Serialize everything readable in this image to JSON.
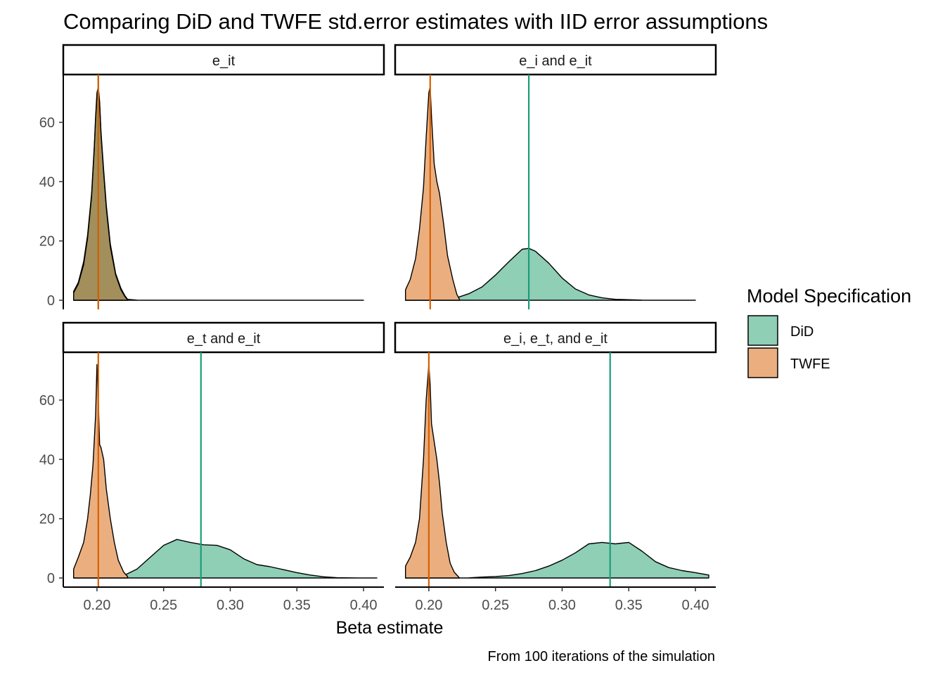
{
  "chart_data": {
    "type": "area",
    "title": "Comparing DiD and TWFE std.error estimates with IID error assumptions",
    "xlabel": "Beta estimate",
    "ylabel": "",
    "caption": "From 100 iterations of the simulation",
    "xlim": [
      0.18,
      0.41
    ],
    "ylim": [
      0,
      73
    ],
    "x_ticks": [
      0.2,
      0.25,
      0.3,
      0.35,
      0.4
    ],
    "x_tick_labels": [
      "0.20",
      "0.25",
      "0.30",
      "0.35",
      "0.40"
    ],
    "y_ticks": [
      0,
      20,
      40,
      60
    ],
    "y_tick_labels": [
      "0",
      "20",
      "40",
      "60"
    ],
    "grid": false,
    "legend": {
      "title": "Model Specification",
      "placement": "right",
      "entries": [
        {
          "label": "DiD",
          "color": "#1b9e77"
        },
        {
          "label": "TWFE",
          "color": "#d95f02"
        }
      ]
    },
    "fill_colors": {
      "DiD": "#8ecfb6",
      "TWFE": "#ebaf7f"
    },
    "line_colors": {
      "DiD": "#1b9e77",
      "TWFE": "#d95f02"
    },
    "panels": [
      {
        "strip": "e_it",
        "x_range": [
          0.1825,
          0.4
        ],
        "series": [
          {
            "name": "DiD",
            "mean": 0.201,
            "x": [
              0.1825,
              0.186,
              0.19,
              0.193,
              0.196,
              0.198,
              0.199,
              0.2,
              0.201,
              0.202,
              0.203,
              0.205,
              0.207,
              0.21,
              0.214,
              0.218,
              0.221,
              0.223,
              0.23,
              0.26,
              0.3,
              0.35,
              0.4
            ],
            "y": [
              3,
              6,
              13,
              22,
              36,
              52,
              62,
              70,
              72,
              67,
              57,
              44,
              32,
              19,
              9,
              4,
              1.5,
              0.3,
              0.05,
              0,
              0,
              0,
              0
            ]
          },
          {
            "name": "TWFE",
            "mean": 0.201,
            "x": [
              0.1825,
              0.186,
              0.19,
              0.193,
              0.196,
              0.198,
              0.199,
              0.2,
              0.201,
              0.202,
              0.203,
              0.205,
              0.207,
              0.21,
              0.214,
              0.218,
              0.221,
              0.223
            ],
            "y": [
              2.5,
              5.5,
              12,
              21,
              35,
              51,
              61,
              69,
              71,
              66,
              56,
              43,
              31,
              18,
              8.5,
              3.5,
              1.2,
              0.1
            ]
          }
        ]
      },
      {
        "strip": "e_i and e_it",
        "x_range": [
          0.1825,
          0.4
        ],
        "series": [
          {
            "name": "DiD",
            "mean": 0.275,
            "x": [
              0.1825,
              0.2,
              0.215,
              0.222,
              0.23,
              0.24,
              0.25,
              0.26,
              0.27,
              0.275,
              0.28,
              0.29,
              0.3,
              0.31,
              0.32,
              0.33,
              0.34,
              0.36,
              0.38,
              0.4
            ],
            "y": [
              0,
              0,
              0.3,
              1,
              2.2,
              4.5,
              8.5,
              13,
              17.2,
              17.5,
              16.5,
              12.5,
              7.5,
              3.8,
              1.8,
              0.8,
              0.3,
              0.05,
              0,
              0
            ]
          },
          {
            "name": "TWFE",
            "mean": 0.201,
            "x": [
              0.1825,
              0.186,
              0.19,
              0.193,
              0.196,
              0.198,
              0.2,
              0.201,
              0.202,
              0.204,
              0.206,
              0.208,
              0.211,
              0.214,
              0.218,
              0.221,
              0.223
            ],
            "y": [
              3.5,
              7,
              14,
              24,
              38,
              55,
              70,
              72,
              62,
              46,
              40,
              36,
              26,
              15,
              7,
              2,
              0.3
            ]
          }
        ]
      },
      {
        "strip": "e_t and e_it",
        "x_range": [
          0.1825,
          0.41
        ],
        "series": [
          {
            "name": "DiD",
            "mean": 0.278,
            "x": [
              0.1825,
              0.2,
              0.21,
              0.215,
              0.22,
              0.23,
              0.24,
              0.25,
              0.26,
              0.27,
              0.28,
              0.29,
              0.3,
              0.31,
              0.32,
              0.33,
              0.34,
              0.35,
              0.36,
              0.37,
              0.38,
              0.4,
              0.41
            ],
            "y": [
              0,
              0,
              0,
              0.3,
              0.8,
              3,
              7,
              11,
              13,
              12,
              11.2,
              11,
              9.5,
              6.5,
              4.5,
              3.8,
              2.8,
              1.8,
              1,
              0.4,
              0.1,
              0,
              0
            ]
          },
          {
            "name": "TWFE",
            "mean": 0.201,
            "x": [
              0.1825,
              0.186,
              0.19,
              0.193,
              0.195,
              0.197,
              0.199,
              0.2,
              0.201,
              0.202,
              0.203,
              0.205,
              0.207,
              0.21,
              0.213,
              0.216,
              0.22,
              0.223
            ],
            "y": [
              3,
              7,
              12,
              20,
              28,
              38,
              55,
              72,
              60,
              45,
              44,
              40,
              30,
              20,
              12,
              6,
              2,
              0.5
            ]
          }
        ]
      },
      {
        "strip": "e_i, e_t, and e_it",
        "x_range": [
          0.1825,
          0.41
        ],
        "series": [
          {
            "name": "DiD",
            "mean": 0.336,
            "x": [
              0.1825,
              0.2,
              0.22,
              0.23,
              0.24,
              0.25,
              0.26,
              0.27,
              0.28,
              0.29,
              0.3,
              0.31,
              0.32,
              0.33,
              0.34,
              0.35,
              0.36,
              0.37,
              0.38,
              0.39,
              0.4,
              0.41
            ],
            "y": [
              0,
              0,
              0,
              0.05,
              0.3,
              0.5,
              0.8,
              1.5,
              2.5,
              4,
              6,
              8.5,
              11.5,
              12,
              11.5,
              12,
              9,
              5.5,
              3.5,
              2.5,
              1.8,
              1
            ]
          },
          {
            "name": "TWFE",
            "mean": 0.2,
            "x": [
              0.1825,
              0.186,
              0.19,
              0.193,
              0.196,
              0.198,
              0.2,
              0.201,
              0.202,
              0.204,
              0.206,
              0.208,
              0.21,
              0.213,
              0.216,
              0.219,
              0.222,
              0.223
            ],
            "y": [
              4,
              7,
              12,
              20,
              40,
              60,
              72,
              65,
              52,
              46,
              40,
              32,
              22,
              12,
              5,
              2,
              0.5,
              0
            ]
          }
        ]
      }
    ]
  }
}
